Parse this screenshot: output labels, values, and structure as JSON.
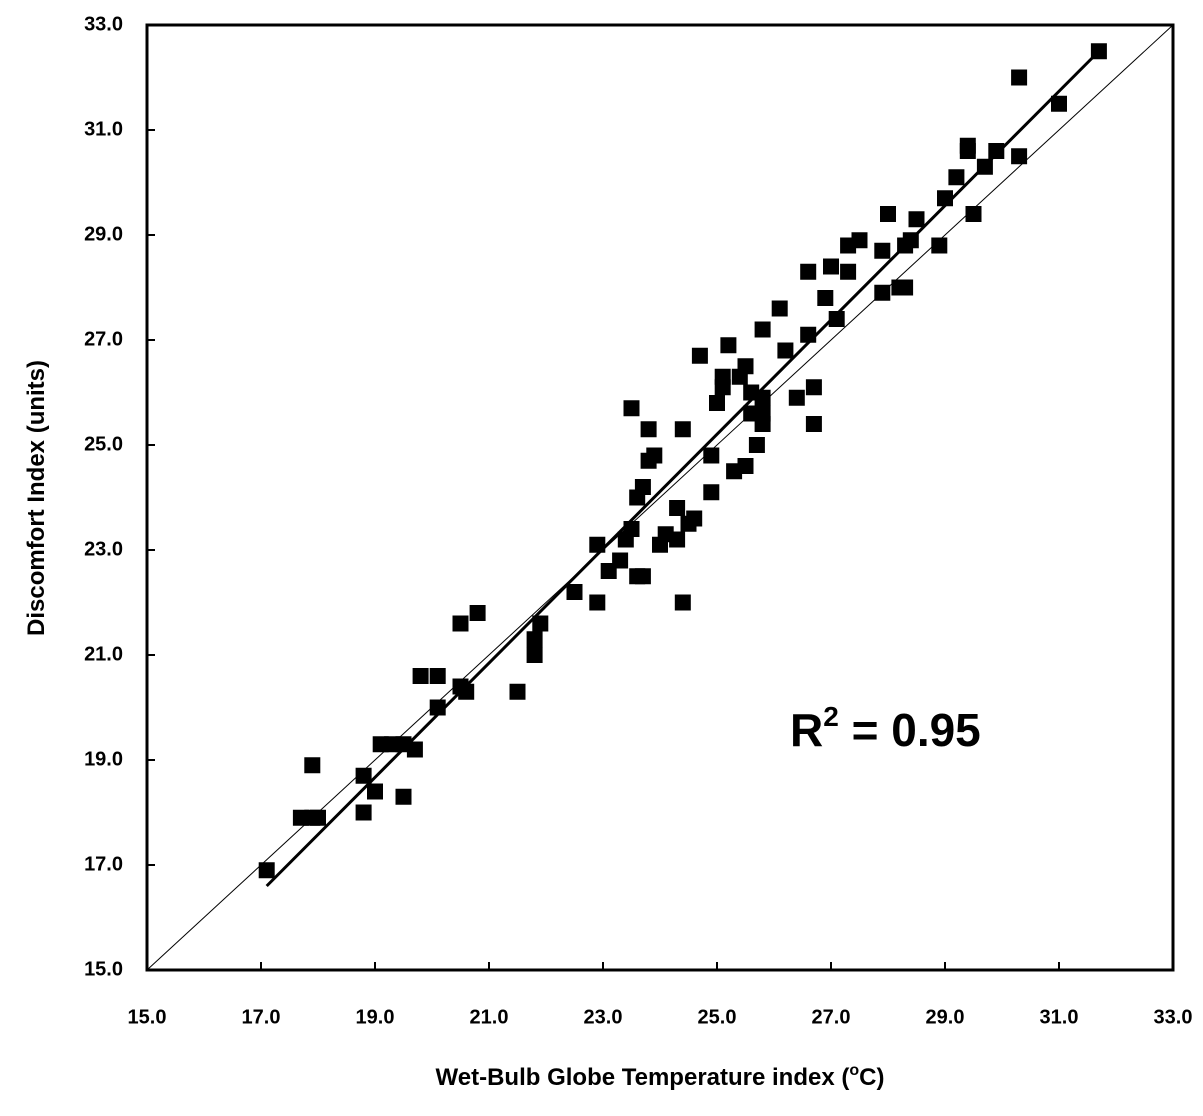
{
  "chart_data": {
    "type": "scatter",
    "xlabel": [
      "Wet-Bulb Globe Temperature index (",
      "o",
      "C)"
    ],
    "ylabel": "Discomfort Index (units)",
    "annotation": [
      "R",
      "2",
      " = 0.95"
    ],
    "xlim": [
      15,
      33
    ],
    "ylim": [
      15,
      33
    ],
    "xticks": [
      {
        "value": 15,
        "label": "15.0"
      },
      {
        "value": 17,
        "label": "17.0"
      },
      {
        "value": 19,
        "label": "19.0"
      },
      {
        "value": 21,
        "label": "21.0"
      },
      {
        "value": 23,
        "label": "23.0"
      },
      {
        "value": 25,
        "label": "25.0"
      },
      {
        "value": 27,
        "label": "27.0"
      },
      {
        "value": 29,
        "label": "29.0"
      },
      {
        "value": 31,
        "label": "31.0"
      },
      {
        "value": 33,
        "label": "33.0"
      }
    ],
    "yticks": [
      {
        "value": 15,
        "label": "15.0"
      },
      {
        "value": 17,
        "label": "17.0"
      },
      {
        "value": 19,
        "label": "19.0"
      },
      {
        "value": 21,
        "label": "21.0"
      },
      {
        "value": 23,
        "label": "23.0"
      },
      {
        "value": 25,
        "label": "25.0"
      },
      {
        "value": 27,
        "label": "27.0"
      },
      {
        "value": 29,
        "label": "29.0"
      },
      {
        "value": 31,
        "label": "31.0"
      },
      {
        "value": 33,
        "label": "33.0"
      }
    ],
    "grid": false,
    "color": "#000000",
    "x": [
      17.1,
      17.7,
      17.9,
      18.0,
      17.9,
      18.8,
      18.8,
      19.0,
      19.1,
      19.3,
      19.5,
      19.5,
      19.7,
      19.8,
      20.1,
      20.1,
      20.5,
      20.6,
      20.5,
      20.8,
      21.5,
      21.8,
      21.8,
      21.9,
      22.5,
      22.9,
      22.9,
      23.1,
      23.3,
      23.4,
      23.5,
      23.6,
      23.7,
      23.5,
      23.6,
      23.7,
      23.8,
      23.8,
      23.9,
      24.0,
      24.1,
      24.3,
      24.3,
      24.4,
      24.4,
      24.5,
      24.6,
      24.7,
      24.9,
      24.9,
      25.0,
      25.1,
      25.1,
      25.2,
      25.3,
      25.4,
      25.5,
      25.5,
      25.6,
      25.6,
      25.7,
      25.8,
      25.8,
      25.8,
      25.8,
      26.1,
      26.2,
      26.4,
      26.6,
      26.6,
      26.7,
      26.7,
      26.9,
      27.0,
      27.1,
      27.3,
      27.3,
      27.5,
      27.9,
      27.9,
      28.0,
      28.2,
      28.3,
      28.3,
      28.4,
      28.5,
      28.9,
      29.0,
      29.2,
      29.4,
      29.4,
      29.5,
      29.7,
      29.9,
      30.3,
      30.3,
      31.0,
      31.7
    ],
    "y": [
      16.9,
      17.9,
      17.9,
      17.9,
      18.9,
      18.0,
      18.7,
      18.4,
      19.3,
      19.3,
      19.3,
      18.3,
      19.2,
      20.6,
      20.6,
      20.0,
      20.4,
      20.3,
      21.6,
      21.8,
      20.3,
      21.0,
      21.3,
      21.6,
      22.2,
      23.1,
      22.0,
      22.6,
      22.8,
      23.2,
      23.4,
      22.5,
      22.5,
      25.7,
      24.0,
      24.2,
      25.3,
      24.7,
      24.8,
      23.1,
      23.3,
      23.8,
      23.2,
      22.0,
      25.3,
      23.5,
      23.6,
      26.7,
      24.1,
      24.8,
      25.8,
      26.1,
      26.3,
      26.9,
      24.5,
      26.3,
      26.5,
      24.6,
      26.0,
      25.6,
      25.0,
      27.2,
      25.6,
      25.4,
      25.9,
      27.6,
      26.8,
      25.9,
      27.1,
      28.3,
      26.1,
      25.4,
      27.8,
      28.4,
      27.4,
      28.3,
      28.8,
      28.9,
      28.7,
      27.9,
      29.4,
      28.0,
      28.0,
      28.8,
      28.9,
      29.3,
      28.8,
      29.7,
      30.1,
      30.7,
      30.6,
      29.4,
      30.3,
      30.6,
      32.0,
      30.5,
      31.5,
      32.5
    ],
    "lines": [
      {
        "x": [
          17.1,
          31.7
        ],
        "y": [
          16.6,
          32.5
        ]
      },
      {
        "x": [
          15,
          33
        ],
        "y": [
          15,
          33
        ]
      }
    ]
  }
}
